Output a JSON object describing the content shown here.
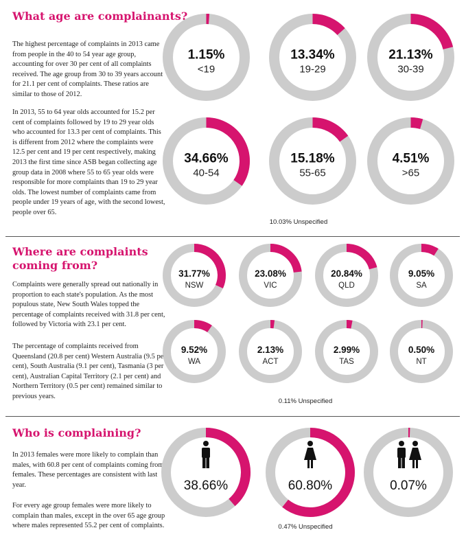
{
  "colors": {
    "accent": "#d6146e",
    "track": "#cccccc",
    "text": "#111111"
  },
  "sections": {
    "age": {
      "title": "What age are complainants?",
      "paragraphs": [
        "The highest percentage of complaints in 2013 came from people in the 40 to 54 year age group, accounting for over 30 per cent of all complaints received. The age group from 30 to 39 years account for 21.1 per cent of complaints. These ratios are similar to those of 2012.",
        "In 2013, 55 to 64 year olds accounted for 15.2 per cent of complaints followed by 19 to 29 year olds who accounted for 13.3 per cent of complaints. This is different from 2012 where the complaints were 12.5 per cent and 19 per cent respectively, making 2013 the first time since ASB began collecting age group data in 2008 where 55 to 65 year olds were responsible for more complaints than 19 to 29 year olds. The lowest number of complaints came from people under 19 years of age, with the second lowest, people over 65."
      ],
      "unspecified": "10.03% Unspecified"
    },
    "state": {
      "title_lines": [
        "Where are complaints",
        "coming from?"
      ],
      "paragraphs": [
        "Complaints were generally spread out nationally in proportion to each state's population. As the most populous state, New South Wales topped the percentage of complaints received with 31.8 per cent, followed by Victoria with 23.1 per cent.",
        "The percentage of complaints received from Queensland (20.8 per cent) Western Australia (9.5 per cent), South Australia (9.1 per cent), Tasmania (3 per cent), Australian Capital Territory (2.1 per cent) and Northern Territory (0.5 per cent) remained similar to previous years."
      ],
      "unspecified": "0.11% Unspecified"
    },
    "gender": {
      "title": "Who is complaining?",
      "paragraphs": [
        "In 2013 females were more likely to complain than males, with 60.8 per cent of complaints coming from females. These percentages are consistent with last year.",
        "For every age group females were more likely to complain than males, except in the over 65 age group where males represented 55.2 per cent of complaints."
      ],
      "unspecified": "0.47% Unspecified"
    }
  },
  "chart_data": [
    {
      "type": "pie",
      "variant": "donut",
      "categories": [
        "<19",
        "19-29",
        "30-39",
        "40-54",
        "55-65",
        ">65"
      ],
      "values": [
        1.15,
        13.34,
        21.13,
        34.66,
        15.18,
        4.51
      ],
      "value_labels": [
        "1.15%",
        "13.34%",
        "21.13%",
        "34.66%",
        "15.18%",
        "4.51%"
      ],
      "unit": "%",
      "annotations": [
        "10.03% Unspecified"
      ]
    },
    {
      "type": "pie",
      "variant": "donut",
      "categories": [
        "NSW",
        "VIC",
        "QLD",
        "SA",
        "WA",
        "ACT",
        "TAS",
        "NT"
      ],
      "values": [
        31.77,
        23.08,
        20.84,
        9.05,
        9.52,
        2.13,
        2.99,
        0.5
      ],
      "value_labels": [
        "31.77%",
        "23.08%",
        "20.84%",
        "9.05%",
        "9.52%",
        "2.13%",
        "2.99%",
        "0.50%"
      ],
      "unit": "%",
      "annotations": [
        "0.11% Unspecified"
      ]
    },
    {
      "type": "pie",
      "variant": "donut",
      "categories": [
        "male",
        "female",
        "male-female"
      ],
      "icons": [
        "male-icon",
        "female-icon",
        "couple-icon"
      ],
      "values": [
        38.66,
        60.8,
        0.07
      ],
      "value_labels": [
        "38.66%",
        "60.80%",
        "0.07%"
      ],
      "unit": "%",
      "annotations": [
        "0.47% Unspecified"
      ]
    }
  ]
}
